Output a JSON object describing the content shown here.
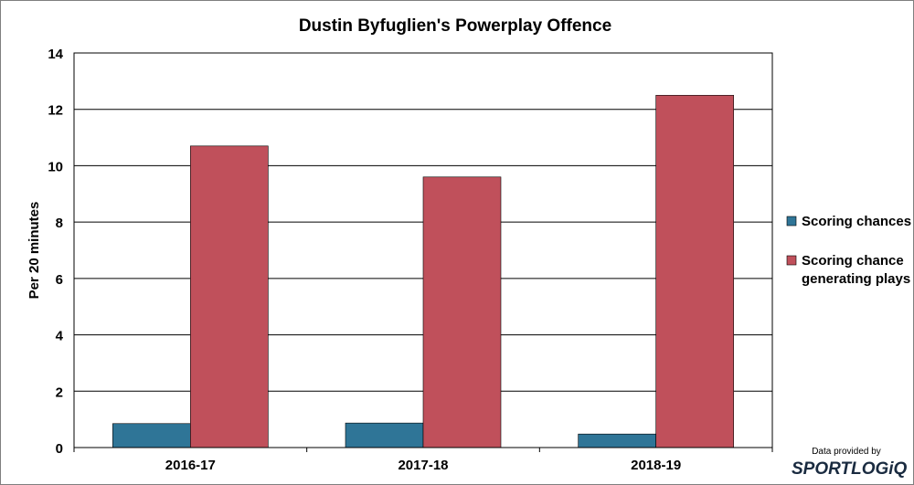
{
  "chart_data": {
    "type": "bar",
    "title": "Dustin Byfuglien's Powerplay Offence",
    "xlabel": "",
    "ylabel": "Per 20 minutes",
    "ylim": [
      0,
      14
    ],
    "yticks": [
      "0",
      "2",
      "4",
      "6",
      "8",
      "10",
      "12",
      "14"
    ],
    "grid": true,
    "legend": "right",
    "categories": [
      "2016-17",
      "2017-18",
      "2018-19"
    ],
    "series": [
      {
        "name": "Scoring chances",
        "color": "#2f7597",
        "values": [
          0.85,
          0.87,
          0.48
        ]
      },
      {
        "name": "Scoring chance generating plays",
        "legend_lines": [
          "Scoring chance",
          "generating plays"
        ],
        "color": "#c0505b",
        "values": [
          10.7,
          9.6,
          12.5
        ]
      }
    ]
  },
  "credit": "Data provided by",
  "logo": "SPORTLOGiQ"
}
